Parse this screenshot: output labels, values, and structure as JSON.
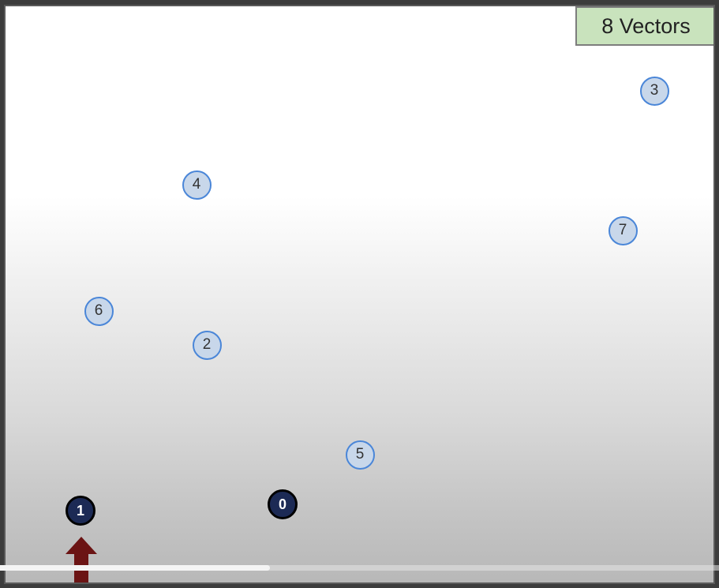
{
  "badge": {
    "label": "8 Vectors",
    "color": "#c9e3bd"
  },
  "nodes": [
    {
      "label": "0",
      "state": "visited"
    },
    {
      "label": "1",
      "state": "visited"
    },
    {
      "label": "2",
      "state": "unvisited"
    },
    {
      "label": "3",
      "state": "unvisited"
    },
    {
      "label": "4",
      "state": "unvisited"
    },
    {
      "label": "5",
      "state": "unvisited"
    },
    {
      "label": "6",
      "state": "unvisited"
    },
    {
      "label": "7",
      "state": "unvisited"
    }
  ],
  "colors": {
    "visited_fill": "#1c2a55",
    "unvisited_fill": "#c8d7ea",
    "unvisited_border": "#4a86d8",
    "arrow": "#6b1414"
  },
  "pointer": {
    "icon": "up-arrow-icon",
    "target_node": "1"
  },
  "video_progress": {
    "fraction": 0.375
  }
}
